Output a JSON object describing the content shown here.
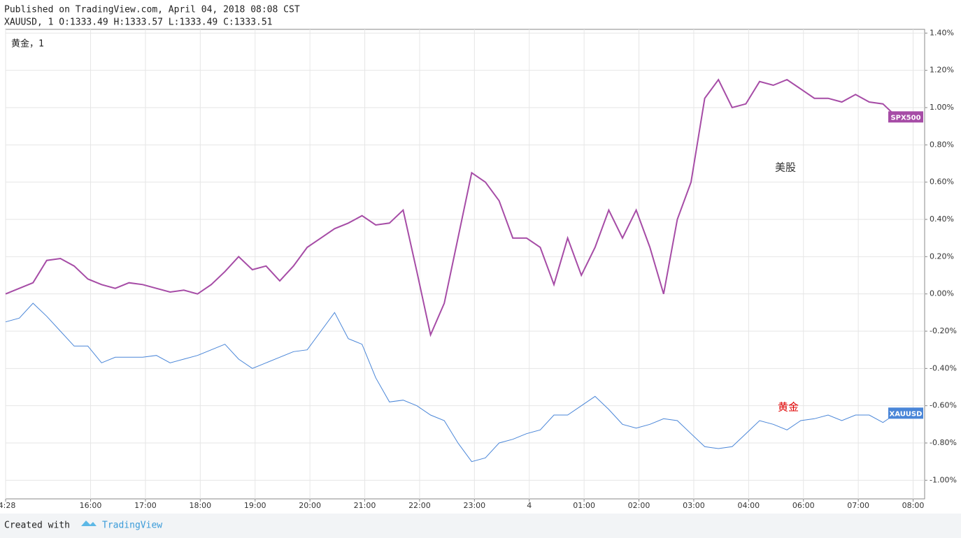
{
  "chart_data": {
    "type": "line",
    "title": "Published on TradingView.com, April 04, 2018 08:08 CST",
    "subtitle": "XAUUSD, 1 O:1333.49 H:1333.57 L:1333.49 C:1333.51",
    "legend_label": "黄金，1",
    "annotations": [
      "美股",
      "黄金"
    ],
    "footer": "Created with",
    "brand": "TradingView",
    "x": [
      0,
      0.25,
      0.5,
      0.75,
      1,
      1.25,
      1.5,
      1.75,
      2,
      2.25,
      2.5,
      2.75,
      3,
      3.25,
      3.5,
      3.75,
      4,
      4.25,
      4.5,
      4.75,
      5,
      5.25,
      5.5,
      5.75,
      6,
      6.25,
      6.5,
      6.75,
      7,
      7.25,
      7.5,
      7.75,
      8,
      8.25,
      8.5,
      8.75,
      9,
      9.25,
      9.5,
      9.75,
      10,
      10.25,
      10.5,
      10.75,
      11,
      11.25,
      11.5,
      11.75,
      12,
      12.25,
      12.5,
      12.75,
      13,
      13.25,
      13.5,
      13.75,
      14,
      14.25,
      14.5,
      14.75,
      15,
      15.25,
      15.5,
      15.75,
      16,
      16.25
    ],
    "series": [
      {
        "name": "SPX500",
        "color": "#a64ca6",
        "values": [
          0,
          0.03,
          0.06,
          0.18,
          0.19,
          0.15,
          0.08,
          0.05,
          0.03,
          0.06,
          0.05,
          0.03,
          0.01,
          0.02,
          0,
          0.05,
          0.12,
          0.2,
          0.13,
          0.15,
          0.07,
          0.15,
          0.25,
          0.3,
          0.35,
          0.38,
          0.42,
          0.37,
          0.38,
          0.45,
          0.12,
          -0.22,
          -0.05,
          0.3,
          0.65,
          0.6,
          0.5,
          0.3,
          0.3,
          0.25,
          0.05,
          0.3,
          0.1,
          0.25,
          0.45,
          0.3,
          0.45,
          0.25,
          0,
          0.4,
          0.6,
          1.05,
          1.15,
          1,
          1.02,
          1.14,
          1.12,
          1.15,
          1.1,
          1.05,
          1.05,
          1.03,
          1.07,
          1.03,
          1.02,
          0.95
        ]
      },
      {
        "name": "XAUUSD",
        "color": "#4a86d8",
        "values": [
          -0.15,
          -0.13,
          -0.05,
          -0.12,
          -0.2,
          -0.28,
          -0.28,
          -0.37,
          -0.34,
          -0.34,
          -0.34,
          -0.33,
          -0.37,
          -0.35,
          -0.33,
          -0.3,
          -0.27,
          -0.35,
          -0.4,
          -0.37,
          -0.34,
          -0.31,
          -0.3,
          -0.2,
          -0.1,
          -0.24,
          -0.27,
          -0.45,
          -0.58,
          -0.57,
          -0.6,
          -0.65,
          -0.68,
          -0.8,
          -0.9,
          -0.88,
          -0.8,
          -0.78,
          -0.75,
          -0.73,
          -0.65,
          -0.65,
          -0.6,
          -0.55,
          -0.62,
          -0.7,
          -0.72,
          -0.7,
          -0.67,
          -0.68,
          -0.75,
          -0.82,
          -0.83,
          -0.82,
          -0.75,
          -0.68,
          -0.7,
          -0.73,
          -0.68,
          -0.67,
          -0.65,
          -0.68,
          -0.65,
          -0.65,
          -0.69,
          -0.64
        ]
      }
    ],
    "xlim": [
      0,
      16.76
    ],
    "xticks": [
      {
        "value": 0,
        "label": "4:28"
      },
      {
        "value": 1.55,
        "label": "16:00"
      },
      {
        "value": 2.55,
        "label": "17:00"
      },
      {
        "value": 3.55,
        "label": "18:00"
      },
      {
        "value": 4.55,
        "label": "19:00"
      },
      {
        "value": 5.55,
        "label": "20:00"
      },
      {
        "value": 6.55,
        "label": "21:00"
      },
      {
        "value": 7.55,
        "label": "22:00"
      },
      {
        "value": 8.55,
        "label": "23:00"
      },
      {
        "value": 9.55,
        "label": "4"
      },
      {
        "value": 10.55,
        "label": "01:00"
      },
      {
        "value": 11.55,
        "label": "02:00"
      },
      {
        "value": 12.55,
        "label": "03:00"
      },
      {
        "value": 13.55,
        "label": "04:00"
      },
      {
        "value": 14.55,
        "label": "06:00"
      },
      {
        "value": 15.55,
        "label": "07:00"
      },
      {
        "value": 16.55,
        "label": "08:00"
      }
    ],
    "ylim": [
      -1.1,
      1.42
    ],
    "yticks": [
      {
        "value": 1.4,
        "label": "1.40%"
      },
      {
        "value": 1.2,
        "label": "1.20%"
      },
      {
        "value": 1,
        "label": "1.00%"
      },
      {
        "value": 0.8,
        "label": "0.80%"
      },
      {
        "value": 0.6,
        "label": "0.60%"
      },
      {
        "value": 0.4,
        "label": "0.40%"
      },
      {
        "value": 0.2,
        "label": "0.20%"
      },
      {
        "value": 0,
        "label": "0.00%"
      },
      {
        "value": -0.2,
        "label": "-0.20%"
      },
      {
        "value": -0.4,
        "label": "-0.40%"
      },
      {
        "value": -0.6,
        "label": "-0.60%"
      },
      {
        "value": -0.8,
        "label": "-0.80%"
      },
      {
        "value": -1,
        "label": "-1.00%"
      }
    ],
    "grid": true
  }
}
